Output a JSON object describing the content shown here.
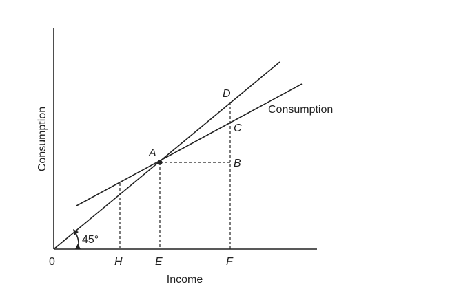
{
  "axes": {
    "x_label": "Income",
    "y_label": "Consumption",
    "origin_label": "0"
  },
  "lines": {
    "consumption_label": "Consumption",
    "angle_label": "45°"
  },
  "points": {
    "a": "A",
    "b": "B",
    "c": "C",
    "d": "D"
  },
  "ticks": {
    "h": "H",
    "e": "E",
    "f": "F"
  }
}
